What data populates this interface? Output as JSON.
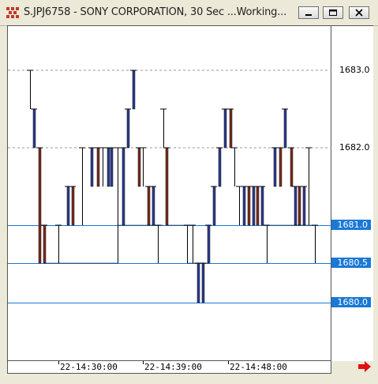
{
  "window": {
    "title": "S.JPJ6758 - SONY CORPORATION, 30 Sec ...Working...",
    "buttons": [
      "minimize",
      "maximize",
      "close"
    ]
  },
  "price_axis": {
    "labels": [
      "1683.0",
      "1682.0"
    ],
    "highlighted": [
      "1681.0",
      "1680.5",
      "1680.0"
    ]
  },
  "time_axis": {
    "labels": [
      "22-14:30:00",
      "22-14:39:00",
      "22-14:48:00"
    ]
  },
  "colors": {
    "up_bar": "#2b3a8f",
    "down_bar": "#7a2a1e",
    "level_line": "#1a78d6",
    "grid_dash": "#9a9a9a"
  },
  "icons": {
    "app": "chart-grid-icon",
    "scroll": "red-right-arrow-icon"
  }
}
